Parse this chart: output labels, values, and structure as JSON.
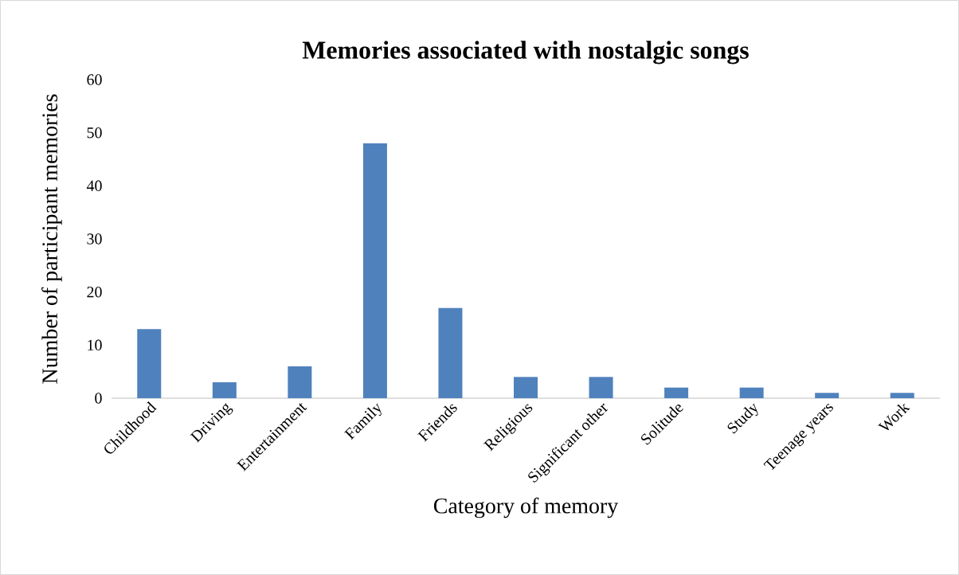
{
  "chart_data": {
    "type": "bar",
    "title": "Memories associated with nostalgic songs",
    "xlabel": "Category of memory",
    "ylabel": "Number of participant memories",
    "categories": [
      "Childhood",
      "Driving",
      "Entertainment",
      "Family",
      "Friends",
      "Religious",
      "Significant other",
      "Solitude",
      "Study",
      "Teenage years",
      "Work"
    ],
    "values": [
      13,
      3,
      6,
      48,
      17,
      4,
      4,
      2,
      2,
      1,
      1
    ],
    "color": "#4f81bd",
    "ylim": [
      0,
      60
    ],
    "yticks": [
      0,
      10,
      20,
      30,
      40,
      50,
      60
    ],
    "grid": false
  }
}
